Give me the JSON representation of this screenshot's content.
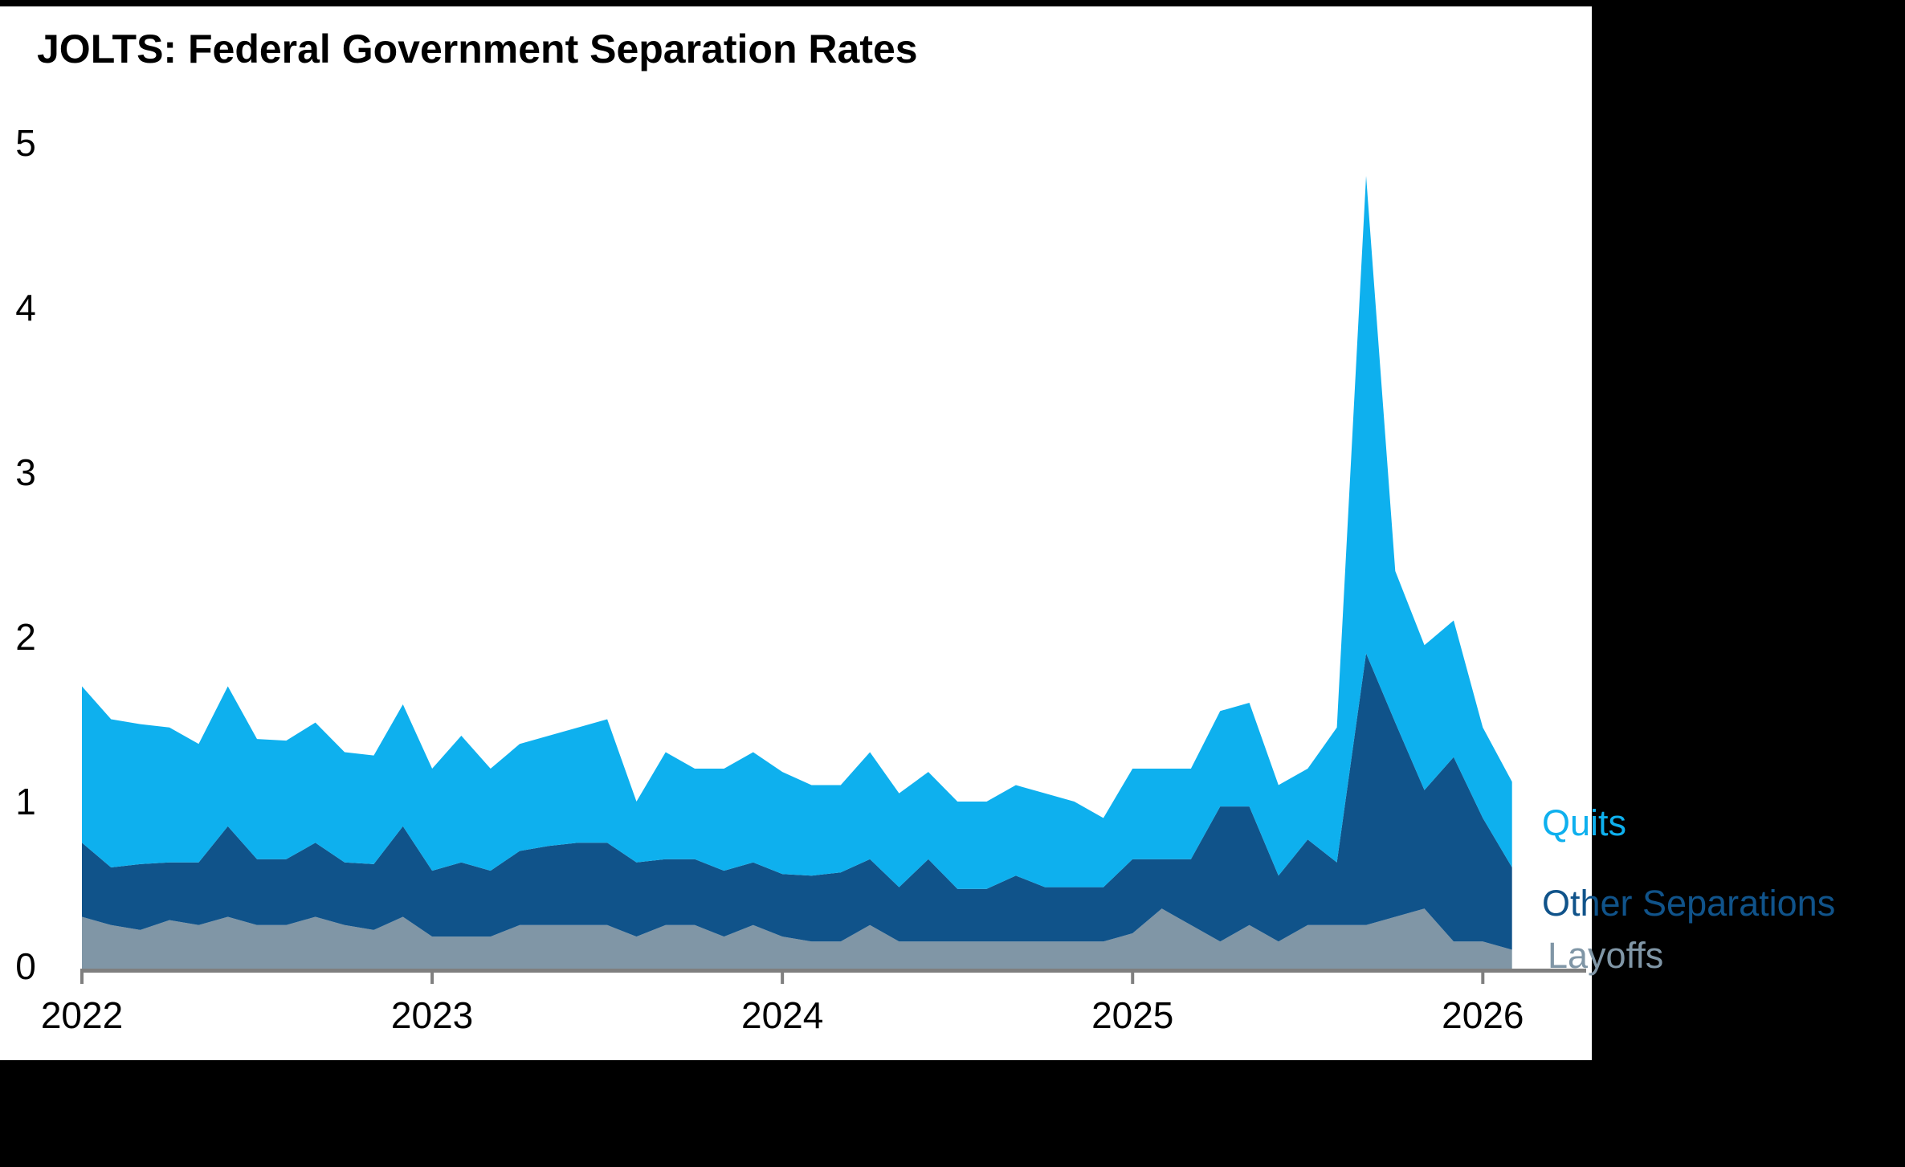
{
  "page": {
    "title": "JOLTS: Federal Government Separation Rates"
  },
  "colors": {
    "background": "#000000",
    "card": "#ffffff",
    "title_text": "#000000",
    "axis_line": "#7f7f7f",
    "tick_text": "#000000"
  },
  "chart_data": {
    "type": "area",
    "stacked": true,
    "title": "JOLTS: Federal Government Separation Rates",
    "xlabel": "",
    "ylabel": "",
    "ylim": [
      0,
      5
    ],
    "y_ticks": [
      "0",
      "1",
      "2",
      "3",
      "4",
      "5"
    ],
    "grid": false,
    "legend_position": "right",
    "x_tick_labels": [
      "2022",
      "2023",
      "2024",
      "2025",
      "2026"
    ],
    "x": [
      "2022-01",
      "2022-02",
      "2022-03",
      "2022-04",
      "2022-05",
      "2022-06",
      "2022-07",
      "2022-08",
      "2022-09",
      "2022-10",
      "2022-11",
      "2022-12",
      "2023-01",
      "2023-02",
      "2023-03",
      "2023-04",
      "2023-05",
      "2023-06",
      "2023-07",
      "2023-08",
      "2023-09",
      "2023-10",
      "2023-11",
      "2023-12",
      "2024-01",
      "2024-02",
      "2024-03",
      "2024-04",
      "2024-05",
      "2024-06",
      "2024-07",
      "2024-08",
      "2024-09",
      "2024-10",
      "2024-11",
      "2024-12",
      "2025-01",
      "2025-02",
      "2025-03",
      "2025-04",
      "2025-05",
      "2025-06",
      "2025-07",
      "2025-08",
      "2025-09",
      "2025-10",
      "2025-11",
      "2025-12",
      "2026-01",
      "2026-02"
    ],
    "series": [
      {
        "name": "Layoffs",
        "color": "#8096A6",
        "values": [
          0.3,
          0.25,
          0.22,
          0.28,
          0.25,
          0.3,
          0.25,
          0.25,
          0.3,
          0.25,
          0.22,
          0.3,
          0.18,
          0.18,
          0.18,
          0.25,
          0.25,
          0.25,
          0.25,
          0.18,
          0.25,
          0.25,
          0.18,
          0.25,
          0.18,
          0.15,
          0.15,
          0.25,
          0.15,
          0.15,
          0.15,
          0.15,
          0.15,
          0.15,
          0.15,
          0.15,
          0.2,
          0.35,
          0.25,
          0.15,
          0.25,
          0.15,
          0.25,
          0.25,
          0.25,
          0.3,
          0.35,
          0.15,
          0.15,
          0.1
        ]
      },
      {
        "name": "Other Separations",
        "color": "#10538A",
        "values": [
          0.45,
          0.35,
          0.4,
          0.35,
          0.38,
          0.55,
          0.4,
          0.4,
          0.45,
          0.38,
          0.4,
          0.55,
          0.4,
          0.45,
          0.4,
          0.45,
          0.48,
          0.5,
          0.5,
          0.45,
          0.4,
          0.4,
          0.4,
          0.38,
          0.38,
          0.4,
          0.42,
          0.4,
          0.33,
          0.5,
          0.32,
          0.32,
          0.4,
          0.33,
          0.33,
          0.33,
          0.45,
          0.3,
          0.4,
          0.82,
          0.72,
          0.4,
          0.52,
          0.38,
          1.65,
          1.18,
          0.72,
          1.12,
          0.75,
          0.5
        ]
      },
      {
        "name": "Quits",
        "color": "#0EB0EE",
        "values": [
          0.95,
          0.9,
          0.85,
          0.82,
          0.72,
          0.85,
          0.73,
          0.72,
          0.73,
          0.67,
          0.66,
          0.74,
          0.62,
          0.77,
          0.62,
          0.65,
          0.67,
          0.7,
          0.75,
          0.37,
          0.65,
          0.55,
          0.62,
          0.67,
          0.62,
          0.55,
          0.53,
          0.65,
          0.57,
          0.53,
          0.53,
          0.53,
          0.55,
          0.57,
          0.52,
          0.42,
          0.55,
          0.55,
          0.55,
          0.58,
          0.63,
          0.55,
          0.43,
          0.82,
          2.9,
          0.92,
          0.88,
          0.83,
          0.55,
          0.52
        ]
      }
    ]
  }
}
